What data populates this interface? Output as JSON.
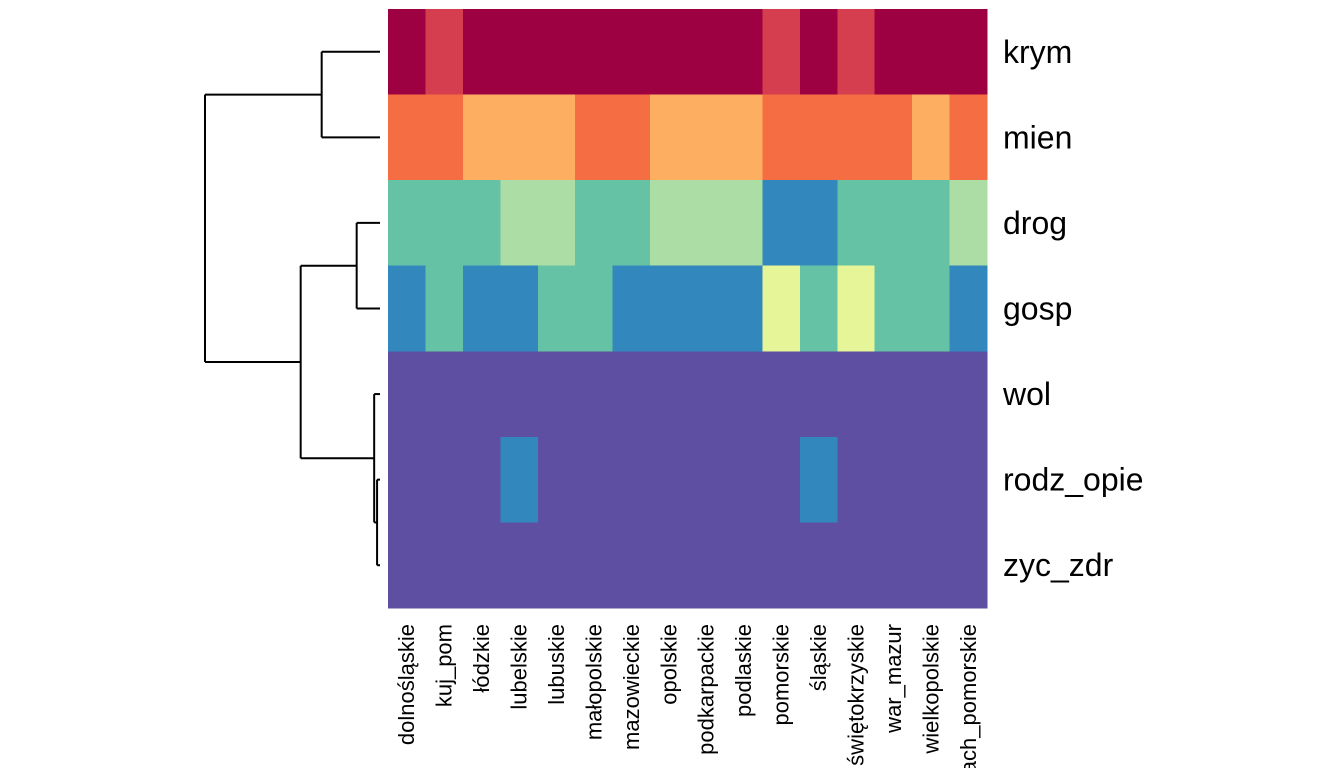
{
  "chart_data": {
    "type": "heatmap",
    "title": "",
    "xlabel": "",
    "ylabel": "",
    "rows": [
      "krym",
      "mien",
      "drog",
      "gosp",
      "wol",
      "rodz_opie",
      "zyc_zdr"
    ],
    "columns": [
      "dolnośląskie",
      "kuj_pom",
      "łódzkie",
      "lubelskie",
      "lubuskie",
      "małopolskie",
      "mazowieckie",
      "opolskie",
      "podkarpackie",
      "podlaskie",
      "pomorskie",
      "śląskie",
      "świętokrzyskie",
      "war_mazur",
      "wielkopolskie",
      "zach_pomorskie"
    ],
    "levels": [
      1,
      2,
      3,
      4,
      5,
      6,
      7,
      8,
      9
    ],
    "palette": [
      "#5E4FA2",
      "#3288BD",
      "#66C2A5",
      "#ABDDA4",
      "#E6F598",
      "#FDAE61",
      "#F46D43",
      "#D53E4F",
      "#9E0142"
    ],
    "values": [
      [
        9,
        8,
        9,
        9,
        9,
        9,
        9,
        9,
        9,
        9,
        8,
        9,
        8,
        9,
        9,
        9
      ],
      [
        7,
        7,
        6,
        6,
        6,
        7,
        7,
        6,
        6,
        6,
        7,
        7,
        7,
        7,
        6,
        7
      ],
      [
        3,
        3,
        3,
        4,
        4,
        3,
        3,
        4,
        4,
        4,
        2,
        2,
        3,
        3,
        3,
        4
      ],
      [
        2,
        3,
        2,
        2,
        3,
        3,
        2,
        2,
        2,
        2,
        5,
        3,
        5,
        3,
        3,
        2
      ],
      [
        1,
        1,
        1,
        1,
        1,
        1,
        1,
        1,
        1,
        1,
        1,
        1,
        1,
        1,
        1,
        1
      ],
      [
        1,
        1,
        1,
        2,
        1,
        1,
        1,
        1,
        1,
        1,
        1,
        2,
        1,
        1,
        1,
        1
      ],
      [
        1,
        1,
        1,
        1,
        1,
        1,
        1,
        1,
        1,
        1,
        1,
        1,
        1,
        1,
        1,
        1
      ]
    ],
    "row_dendrogram": {
      "type": "merge",
      "height": 3,
      "children": [
        {
          "type": "merge",
          "height": 1,
          "children": [
            {
              "type": "leaf",
              "row": "krym"
            },
            {
              "type": "leaf",
              "row": "mien"
            }
          ]
        },
        {
          "type": "merge",
          "height": 1.36,
          "children": [
            {
              "type": "merge",
              "height": 0.4,
              "children": [
                {
                  "type": "leaf",
                  "row": "drog"
                },
                {
                  "type": "leaf",
                  "row": "gosp"
                }
              ]
            },
            {
              "type": "merge",
              "height": 0.1,
              "children": [
                {
                  "type": "leaf",
                  "row": "wol"
                },
                {
                  "type": "merge",
                  "height": 0.05,
                  "children": [
                    {
                      "type": "leaf",
                      "row": "rodz_opie"
                    },
                    {
                      "type": "leaf",
                      "row": "zyc_zdr"
                    }
                  ]
                }
              ]
            }
          ]
        }
      ]
    },
    "legend": "none",
    "grid": false
  }
}
